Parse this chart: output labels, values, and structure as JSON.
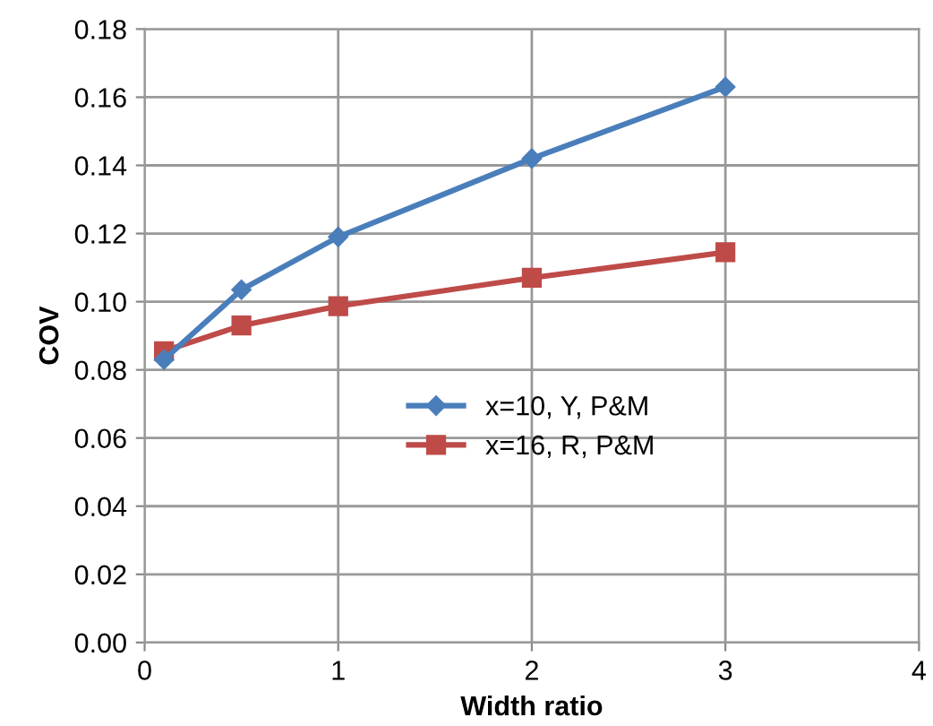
{
  "chart_data": {
    "type": "line",
    "xlabel": "Width ratio",
    "ylabel": "COV",
    "x": [
      0.1,
      0.5,
      1,
      2,
      3
    ],
    "series": [
      {
        "name": "x=10, Y, P&M",
        "color": "#4a7ebb",
        "marker": "diamond",
        "values": [
          0.083,
          0.1035,
          0.119,
          0.142,
          0.163
        ]
      },
      {
        "name": "x=16, R, P&M",
        "color": "#be4b48",
        "marker": "square",
        "values": [
          0.0855,
          0.093,
          0.0987,
          0.107,
          0.1145
        ]
      }
    ],
    "xlim": [
      0,
      4
    ],
    "xticks": [
      0,
      1,
      2,
      3,
      4
    ],
    "ylim": [
      0,
      0.18
    ],
    "yticks": [
      {
        "value": 0,
        "label": "0.00"
      },
      {
        "value": 0.02,
        "label": "0.02"
      },
      {
        "value": 0.04,
        "label": "0.04"
      },
      {
        "value": 0.06,
        "label": "0.06"
      },
      {
        "value": 0.08,
        "label": "0.08"
      },
      {
        "value": 0.1,
        "label": "0.10"
      },
      {
        "value": 0.12,
        "label": "0.12"
      },
      {
        "value": 0.14,
        "label": "0.14"
      },
      {
        "value": 0.16,
        "label": "0.16"
      },
      {
        "value": 0.18,
        "label": "0.18"
      }
    ],
    "grid": true,
    "legend": "center",
    "line_style": "solid"
  }
}
